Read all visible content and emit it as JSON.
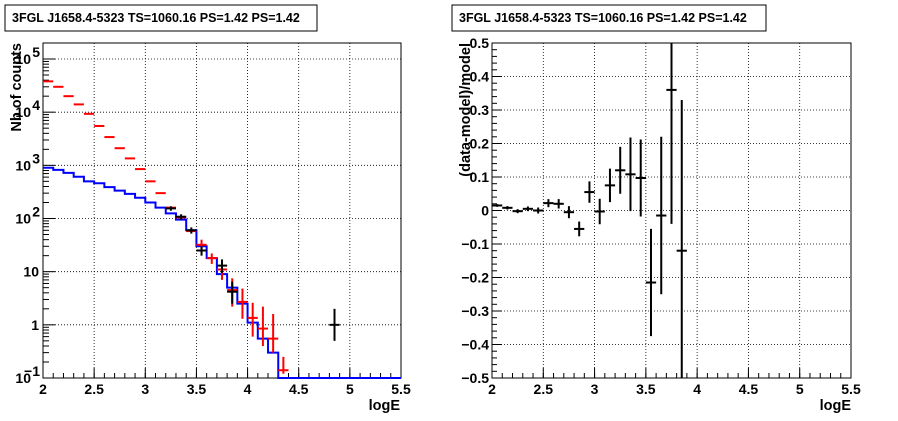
{
  "chart_data": [
    {
      "type": "step-histogram",
      "title": "3FGL J1658.4-5323 TS=1060.16 PS=1.42 PS=1.42",
      "xlabel": "logE",
      "ylabel": "Nb of counts",
      "xlim": [
        2,
        5.5
      ],
      "ylim": [
        0.1,
        200000
      ],
      "yscale": "log",
      "grid": true,
      "x_ticks": [
        "2",
        "2.5",
        "3",
        "3.5",
        "4",
        "4.5",
        "5",
        "5.5"
      ],
      "y_ticks": [
        {
          "value": 0.1,
          "label": "10",
          "exp": "−1"
        },
        {
          "value": 1,
          "label": "1",
          "exp": ""
        },
        {
          "value": 10,
          "label": "10",
          "exp": ""
        },
        {
          "value": 100,
          "label": "10",
          "exp": "2"
        },
        {
          "value": 1000,
          "label": "10",
          "exp": "3"
        },
        {
          "value": 10000,
          "label": "10",
          "exp": "4"
        },
        {
          "value": 100000,
          "label": "10",
          "exp": "5"
        }
      ],
      "series": [
        {
          "role": "model",
          "color": "#ff0000",
          "x": [
            2.05,
            2.15,
            2.25,
            2.35,
            2.45,
            2.55,
            2.65,
            2.75,
            2.85,
            2.95,
            3.05,
            3.15,
            3.25,
            3.35,
            3.45,
            3.55,
            3.65,
            3.75,
            3.85,
            3.95,
            4.05,
            4.15,
            4.25,
            4.35
          ],
          "y": [
            38000,
            30000,
            20000,
            14000,
            9300,
            5500,
            3400,
            2100,
            1350,
            850,
            500,
            300,
            160,
            105,
            58,
            32,
            18,
            11,
            4.5,
            2.7,
            1.35,
            0.85,
            0.55,
            0.14
          ],
          "yerr_low": [
            38000,
            30000,
            20000,
            14000,
            9300,
            5500,
            3400,
            2100,
            1350,
            850,
            500,
            300,
            160,
            105,
            58,
            25,
            14,
            7,
            2.2,
            1.3,
            0.6,
            0.4,
            0.3,
            0.12
          ],
          "yerr_high": [
            38000,
            30000,
            20000,
            14000,
            9300,
            5500,
            3400,
            2100,
            1350,
            850,
            500,
            300,
            160,
            105,
            58,
            40,
            22,
            15,
            7.5,
            4.8,
            2.6,
            2.2,
            1.6,
            0.25
          ]
        },
        {
          "role": "data",
          "color": "#000000",
          "x": [
            3.25,
            3.35,
            3.45,
            3.55,
            3.75,
            3.85,
            4.85
          ],
          "y": [
            155,
            108,
            60,
            25,
            13,
            4.2,
            1
          ],
          "yerr_low": [
            140,
            95,
            52,
            20,
            9.5,
            2.5,
            0.5
          ],
          "yerr_high": [
            170,
            120,
            68,
            30,
            17,
            6.5,
            2
          ]
        },
        {
          "role": "component",
          "color": "#0000ff",
          "bins": [
            2.0,
            2.1,
            2.2,
            2.3,
            2.4,
            2.5,
            2.6,
            2.7,
            2.8,
            2.9,
            3.0,
            3.1,
            3.2,
            3.3,
            3.4,
            3.5,
            3.6,
            3.7,
            3.8,
            3.9,
            4.0,
            4.1,
            4.2,
            4.3,
            5.5
          ],
          "values": [
            900,
            820,
            720,
            610,
            500,
            460,
            390,
            335,
            290,
            245,
            200,
            160,
            125,
            95,
            60,
            30,
            18,
            9,
            5,
            2.5,
            1.1,
            0.55,
            0.3,
            0.1
          ]
        }
      ]
    },
    {
      "type": "scatter-errorbar",
      "title": "3FGL J1658.4-5323 TS=1060.16 PS=1.42 PS=1.42",
      "xlabel": "logE",
      "ylabel": "(data-model)/model",
      "xlim": [
        2,
        5.5
      ],
      "ylim": [
        -0.5,
        0.5
      ],
      "grid": true,
      "x_ticks": [
        "2",
        "2.5",
        "3",
        "3.5",
        "4",
        "4.5",
        "5",
        "5.5"
      ],
      "y_ticks": [
        "−0.5",
        "−0.4",
        "−0.3",
        "−0.2",
        "−0.1",
        "0",
        "0.1",
        "0.2",
        "0.3",
        "0.4",
        "0.5"
      ],
      "series": [
        {
          "role": "residuals",
          "color": "#000000",
          "x": [
            2.05,
            2.15,
            2.25,
            2.35,
            2.45,
            2.55,
            2.65,
            2.75,
            2.85,
            2.95,
            3.05,
            3.15,
            3.25,
            3.35,
            3.45,
            3.55,
            3.65,
            3.75,
            3.85
          ],
          "y": [
            0.015,
            0.008,
            -0.002,
            0.005,
            0.0,
            0.022,
            0.02,
            -0.005,
            -0.055,
            0.055,
            -0.003,
            0.075,
            0.12,
            0.108,
            0.097,
            -0.215,
            -0.015,
            0.36,
            -0.12
          ],
          "yerr": [
            0.004,
            0.005,
            0.006,
            0.007,
            0.009,
            0.012,
            0.014,
            0.018,
            0.022,
            0.032,
            0.038,
            0.05,
            0.07,
            0.11,
            0.115,
            0.16,
            0.235,
            0.4,
            0.45
          ]
        }
      ]
    }
  ]
}
